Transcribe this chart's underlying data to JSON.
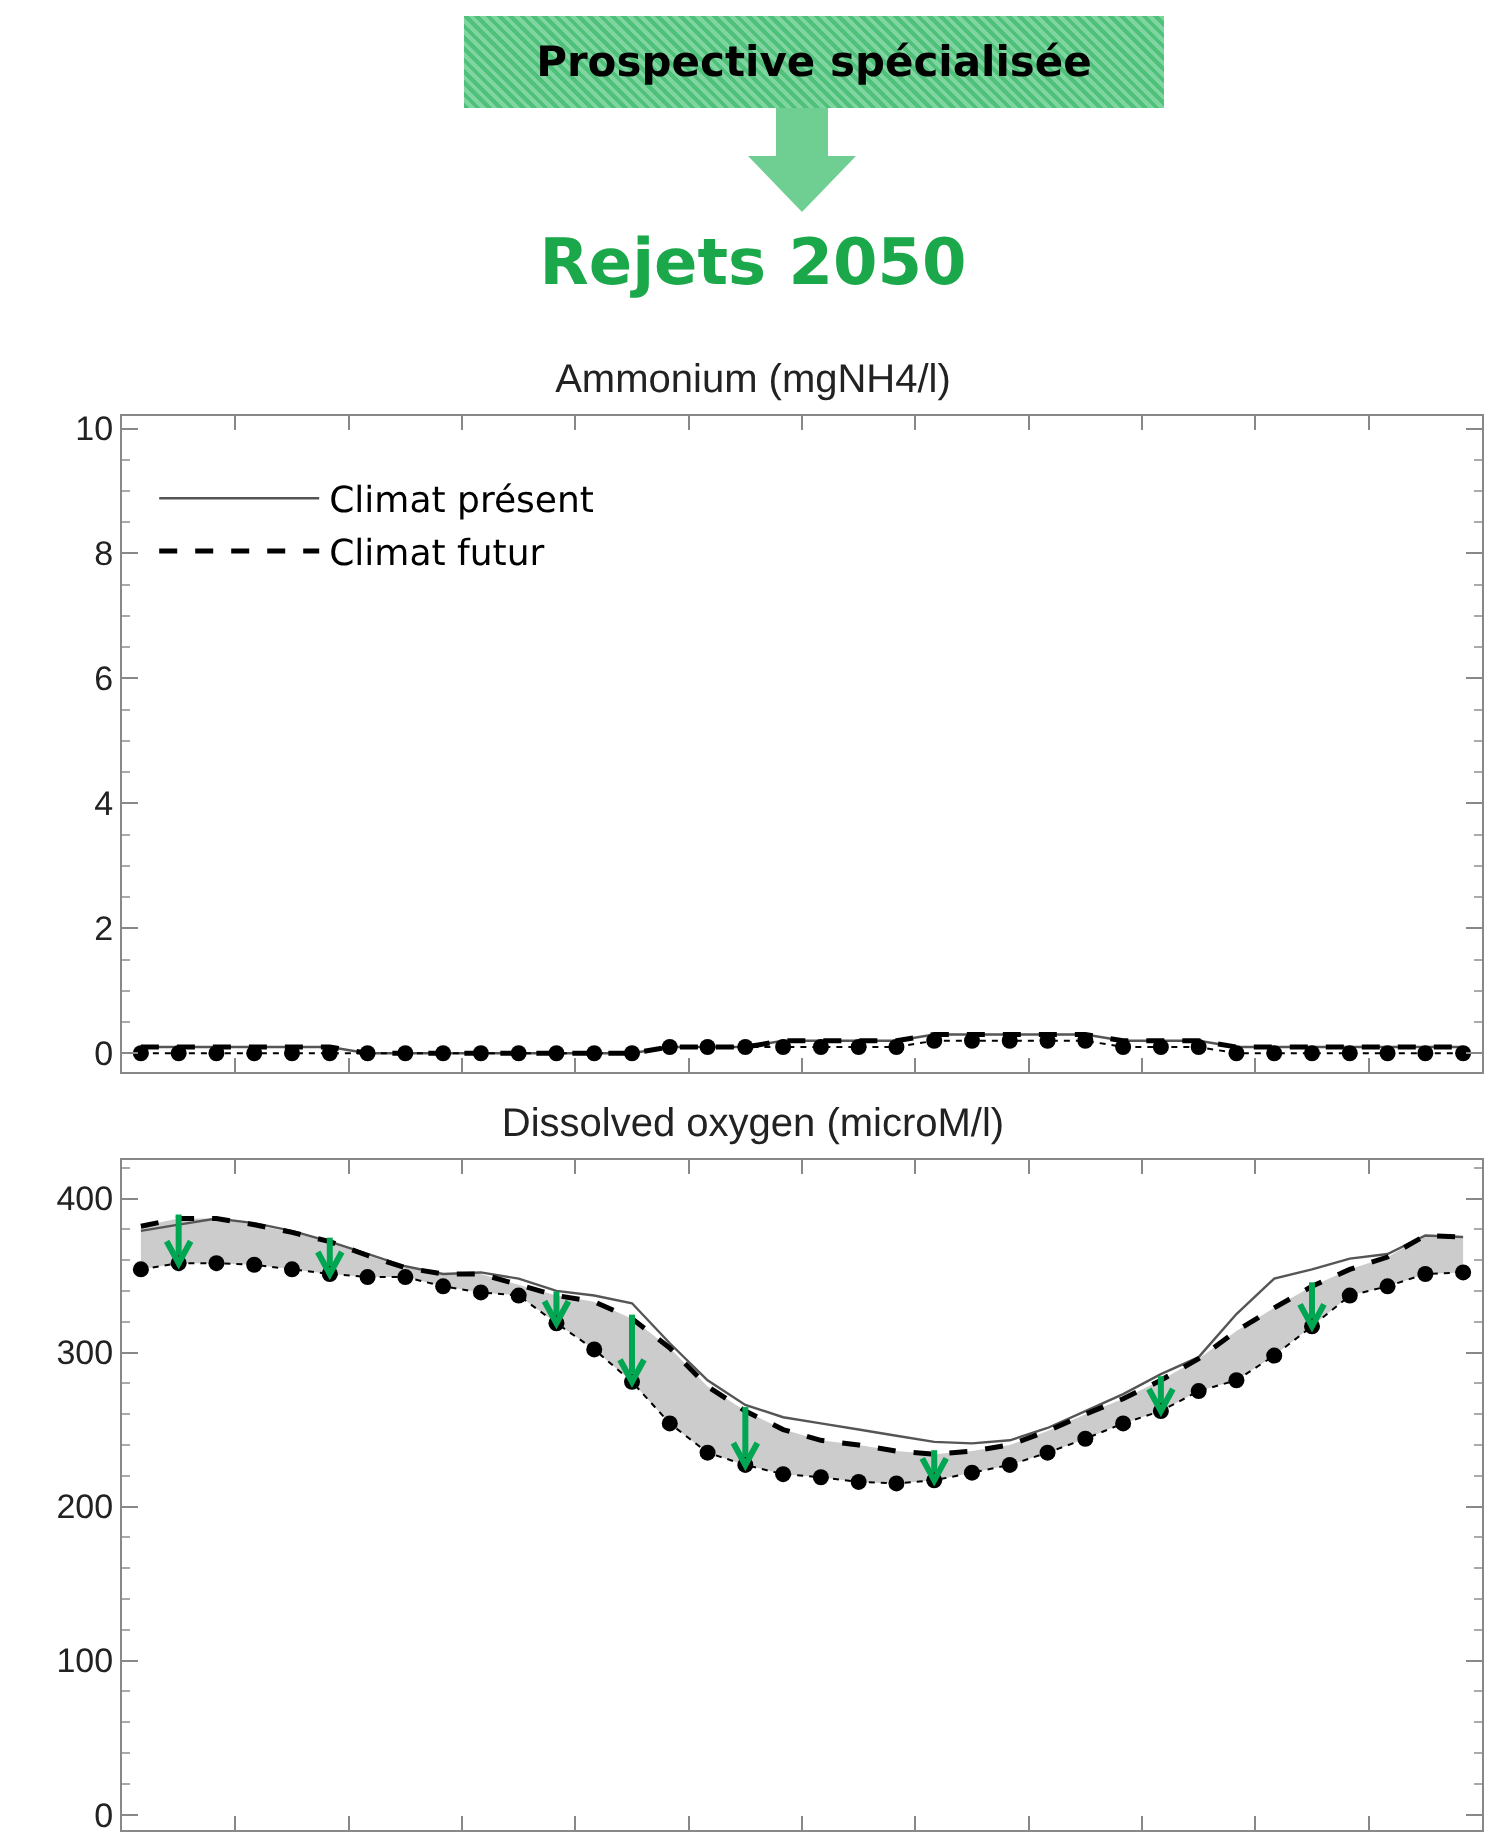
{
  "chart_data": [
    {
      "type": "line",
      "title": "Ammonium (mgNH4/l)",
      "annotations": [
        "Prospective spécialisée",
        "Rejets 2050"
      ],
      "categories": [
        null,
        null,
        null,
        null,
        null,
        null,
        null,
        null,
        null,
        null,
        null,
        null,
        null,
        null,
        null,
        null,
        null,
        null,
        null,
        null,
        null,
        null,
        null,
        null,
        null,
        null,
        null,
        null,
        null,
        null,
        null,
        null,
        null,
        null,
        null,
        null
      ],
      "ylim": [
        -0.3,
        10.2
      ],
      "yticks": [
        0,
        2,
        4,
        6,
        8,
        10
      ],
      "legend": "top left",
      "series": [
        {
          "name": "Climat présent",
          "color": "#555555",
          "line_style": "solid",
          "marker": "none",
          "values": [
            0.1,
            0.1,
            0.1,
            0.1,
            0.1,
            0.1,
            0.0,
            0.0,
            0.0,
            0.0,
            0.0,
            0.0,
            0.0,
            0.0,
            0.1,
            0.1,
            0.1,
            0.2,
            0.2,
            0.2,
            0.2,
            0.3,
            0.3,
            0.3,
            0.3,
            0.3,
            0.2,
            0.2,
            0.2,
            0.1,
            0.1,
            0.1,
            0.1,
            0.1,
            0.1,
            0.1
          ]
        },
        {
          "name": "Climat futur",
          "color": "#000000",
          "line_style": "dashed",
          "marker": "none",
          "values": [
            0.1,
            0.1,
            0.1,
            0.1,
            0.1,
            0.1,
            0.0,
            0.0,
            0.0,
            0.0,
            0.0,
            0.0,
            0.0,
            0.0,
            0.1,
            0.1,
            0.1,
            0.2,
            0.2,
            0.2,
            0.2,
            0.3,
            0.3,
            0.3,
            0.3,
            0.3,
            0.2,
            0.2,
            0.2,
            0.1,
            0.1,
            0.1,
            0.1,
            0.1,
            0.1,
            0.1
          ]
        },
        {
          "color": "#000000",
          "line_style": "dotted",
          "marker": "circle",
          "values": [
            0.0,
            0.0,
            0.0,
            0.0,
            0.0,
            0.0,
            0.0,
            0.0,
            0.0,
            0.0,
            0.0,
            0.0,
            0.0,
            0.0,
            0.1,
            0.1,
            0.1,
            0.1,
            0.1,
            0.1,
            0.1,
            0.2,
            0.2,
            0.2,
            0.2,
            0.2,
            0.1,
            0.1,
            0.1,
            0.0,
            0.0,
            0.0,
            0.0,
            0.0,
            0.0,
            0.0
          ]
        }
      ]
    },
    {
      "type": "line",
      "title": "Dissolved oxygen (microM/l)",
      "categories": [
        null,
        null,
        null,
        null,
        null,
        null,
        null,
        null,
        null,
        null,
        null,
        null,
        null,
        null,
        null,
        null,
        null,
        null,
        null,
        null,
        null,
        null,
        null,
        null,
        null,
        null,
        null,
        null,
        null,
        null,
        null,
        null,
        null,
        null,
        null,
        null
      ],
      "ylim": [
        -10,
        425
      ],
      "yticks": [
        0,
        100,
        200,
        300,
        400
      ],
      "series": [
        {
          "color": "#555555",
          "line_style": "solid",
          "marker": "none",
          "values": [
            379,
            383,
            387,
            384,
            379,
            372,
            364,
            356,
            351,
            352,
            348,
            340,
            337,
            332,
            306,
            282,
            266,
            258,
            254,
            250,
            246,
            242,
            241,
            243,
            251,
            262,
            273,
            286,
            297,
            325,
            348,
            354,
            361,
            364,
            376,
            375
          ]
        },
        {
          "color": "#000000",
          "line_style": "dashed",
          "marker": "none",
          "values": [
            382,
            387,
            387,
            383,
            378,
            372,
            363,
            355,
            351,
            351,
            344,
            337,
            333,
            322,
            303,
            278,
            262,
            250,
            243,
            240,
            236,
            234,
            236,
            240,
            249,
            260,
            270,
            282,
            296,
            314,
            329,
            343,
            354,
            362,
            376,
            375
          ],
          "upper": [
            382,
            387,
            387,
            383,
            378,
            372,
            363,
            355,
            351,
            351,
            344,
            337,
            333,
            322,
            303,
            278,
            262,
            250,
            243,
            240,
            236,
            234,
            236,
            240,
            249,
            260,
            270,
            282,
            296,
            314,
            329,
            343,
            354,
            362,
            376,
            375
          ],
          "lower": [
            354,
            358,
            358,
            357,
            354,
            351,
            349,
            349,
            343,
            339,
            337,
            319,
            302,
            281,
            254,
            235,
            227,
            221,
            219,
            216,
            215,
            217,
            222,
            227,
            235,
            244,
            254,
            262,
            275,
            282,
            298,
            317,
            337,
            343,
            351,
            352
          ]
        },
        {
          "color": "#000000",
          "line_style": "dotted",
          "marker": "circle",
          "values": [
            354,
            358,
            358,
            357,
            354,
            351,
            349,
            349,
            343,
            339,
            337,
            319,
            302,
            281,
            254,
            235,
            227,
            221,
            219,
            216,
            215,
            217,
            222,
            227,
            235,
            244,
            254,
            262,
            275,
            282,
            298,
            317,
            337,
            343,
            351,
            352
          ]
        }
      ]
    }
  ]
}
